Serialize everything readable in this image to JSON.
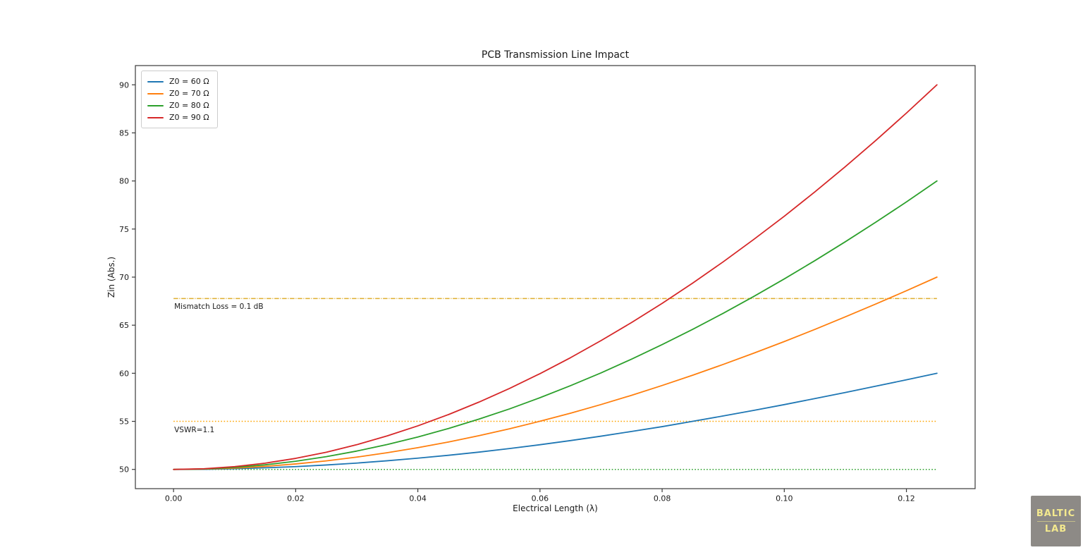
{
  "chart_data": {
    "type": "line",
    "title": "PCB Transmission Line Impact",
    "xlabel": "Electrical Length (λ)",
    "ylabel": "Zin (Abs.)",
    "xlim": [
      -0.00625,
      0.13125
    ],
    "ylim": [
      48,
      92
    ],
    "grid": false,
    "legend_position": "upper-left",
    "xticks": {
      "values": [
        0.0,
        0.02,
        0.04,
        0.06,
        0.08,
        0.1,
        0.12
      ],
      "labels": [
        "0.00",
        "0.02",
        "0.04",
        "0.06",
        "0.08",
        "0.10",
        "0.12"
      ]
    },
    "yticks": {
      "values": [
        50,
        55,
        60,
        65,
        70,
        75,
        80,
        85,
        90
      ],
      "labels": [
        "50",
        "55",
        "60",
        "65",
        "70",
        "75",
        "80",
        "85",
        "90"
      ]
    },
    "x": [
      0,
      0.005,
      0.01,
      0.015,
      0.02,
      0.025,
      0.03,
      0.035,
      0.04,
      0.045,
      0.05,
      0.055,
      0.06,
      0.065,
      0.07,
      0.075,
      0.08,
      0.085,
      0.09,
      0.095,
      0.1,
      0.105,
      0.11,
      0.115,
      0.12,
      0.125
    ],
    "series": [
      {
        "name": "Z0 = 60 Ω",
        "color": "#1f77b4",
        "style": "solid",
        "values": [
          50,
          50.01,
          50.07,
          50.17,
          50.29,
          50.46,
          50.66,
          50.9,
          51.17,
          51.47,
          51.8,
          52.17,
          52.57,
          53.0,
          53.46,
          53.95,
          54.45,
          55.0,
          55.56,
          56.14,
          56.74,
          57.37,
          58.0,
          58.66,
          59.32,
          60.0
        ]
      },
      {
        "name": "Z0 = 70 Ω",
        "color": "#ff7f0e",
        "style": "solid",
        "values": [
          50,
          50.04,
          50.14,
          50.32,
          50.57,
          50.89,
          51.28,
          51.74,
          52.26,
          52.85,
          53.51,
          54.22,
          55.01,
          55.85,
          56.75,
          57.71,
          58.73,
          59.8,
          60.92,
          62.09,
          63.3,
          64.56,
          65.87,
          67.21,
          68.58,
          70.0
        ]
      },
      {
        "name": "Z0 = 80 Ω",
        "color": "#2ca02c",
        "style": "solid",
        "values": [
          50,
          50.05,
          50.21,
          50.48,
          50.85,
          51.33,
          51.91,
          52.59,
          53.37,
          54.25,
          55.23,
          56.29,
          57.46,
          58.71,
          60.04,
          61.47,
          62.98,
          64.57,
          66.24,
          67.99,
          69.81,
          71.71,
          73.68,
          75.72,
          77.82,
          80.0
        ]
      },
      {
        "name": "Z0 = 90 Ω",
        "color": "#d62728",
        "style": "solid",
        "values": [
          50,
          50.07,
          50.29,
          50.65,
          51.15,
          51.79,
          52.57,
          53.49,
          54.53,
          55.7,
          57.0,
          58.42,
          59.96,
          61.62,
          63.4,
          65.28,
          67.27,
          69.38,
          71.59,
          73.92,
          76.33,
          78.86,
          81.49,
          84.22,
          87.06,
          90.0
        ]
      }
    ],
    "reference_lines": [
      {
        "label": "Mismatch Loss = 0.1 dB",
        "y": 67.77,
        "x_start": 0,
        "x_end": 0.125,
        "color": "#dfae2f",
        "style": "dashdot"
      },
      {
        "label": "VSWR=1.1",
        "y": 55,
        "x_start": 0,
        "x_end": 0.125,
        "color": "#ffa500",
        "style": "dotted"
      },
      {
        "label": "",
        "y": 50,
        "x_start": 0,
        "x_end": 0.125,
        "color": "#2ca02c",
        "style": "dotted"
      }
    ]
  },
  "watermark": {
    "line1": "BALTIC",
    "line2": "LAB",
    "bg_color": "#8d8a86",
    "text_color": "#f3e98e"
  }
}
